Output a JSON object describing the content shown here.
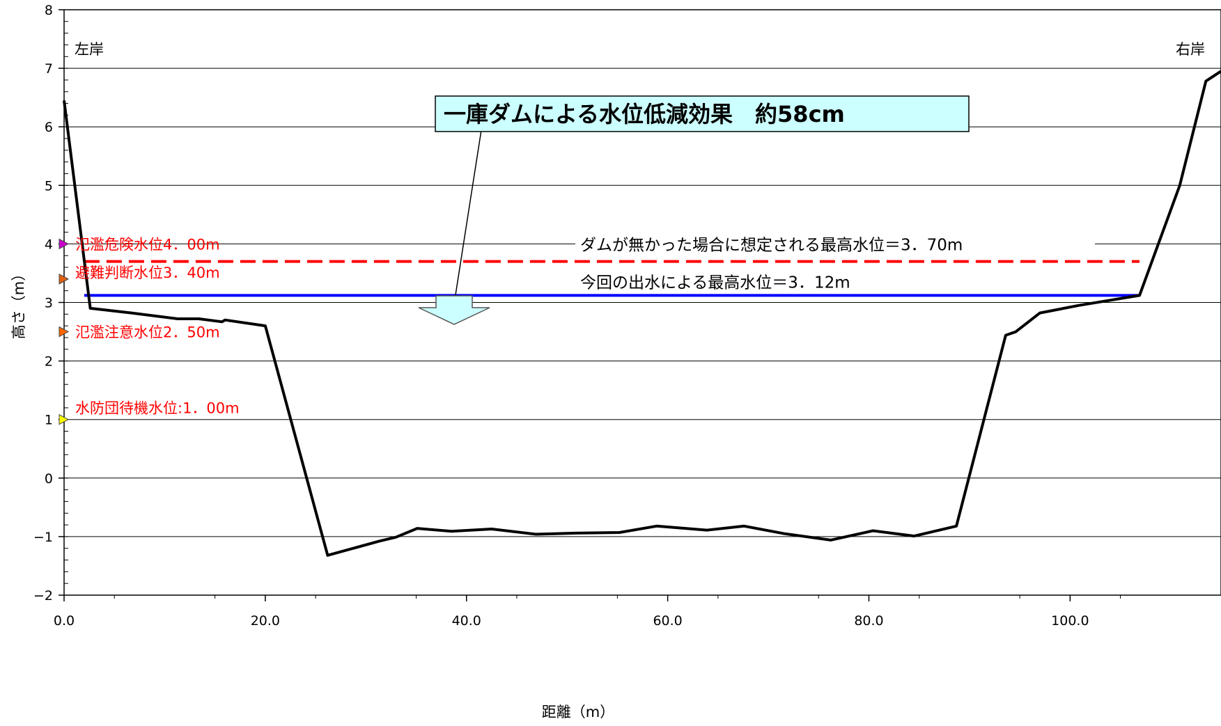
{
  "chart_data": {
    "type": "line",
    "xlabel": "距離（m）",
    "ylabel": "高さ（m）",
    "xlim": [
      0,
      115
    ],
    "ylim": [
      -2,
      8
    ],
    "x_ticks": [
      "0.0",
      "20.0",
      "40.0",
      "60.0",
      "80.0",
      "100.0"
    ],
    "x_tick_values": [
      0,
      20,
      40,
      60,
      80,
      100
    ],
    "y_ticks": [
      "8",
      "7",
      "6",
      "5",
      "4",
      "3",
      "2",
      "1",
      "0",
      "−1",
      "−2"
    ],
    "y_tick_values": [
      8,
      7,
      6,
      5,
      4,
      3,
      2,
      1,
      0,
      -1,
      -2
    ],
    "grid": "horizontal",
    "bank_labels": {
      "left": "左岸",
      "right": "右岸"
    },
    "headline": "一庫ダムによる水位低減効果　約58cm",
    "series": [
      {
        "color": "#000000",
        "x": [
          0.0,
          2.6,
          6.7,
          11.3,
          13.4,
          15.7,
          16.0,
          20.0,
          26.2,
          31.3,
          33.0,
          35.1,
          38.5,
          42.5,
          46.9,
          50.9,
          55.2,
          58.9,
          63.9,
          67.6,
          71.6,
          76.2,
          80.4,
          84.5,
          88.7,
          93.6,
          94.6,
          97.0,
          100.9,
          106.9,
          110.9,
          113.5,
          115.0
        ],
        "y": [
          6.45,
          2.9,
          2.82,
          2.72,
          2.72,
          2.67,
          2.7,
          2.6,
          -1.32,
          -1.08,
          -1.01,
          -0.86,
          -0.91,
          -0.87,
          -0.96,
          -0.94,
          -0.93,
          -0.82,
          -0.89,
          -0.82,
          -0.95,
          -1.06,
          -0.9,
          -0.99,
          -0.82,
          2.44,
          2.5,
          2.82,
          2.95,
          3.12,
          5.0,
          6.78,
          6.95
        ]
      }
    ],
    "reference_lines": [
      {
        "label": "ダムが無かった場合に想定される最高水位＝3．70m",
        "value": 3.7,
        "x_start": 2.0,
        "x_end": 106.9,
        "color": "#ff0000",
        "style": "dashed"
      },
      {
        "label": "今回の出水による最高水位＝3．12m",
        "value": 3.12,
        "x_start": 2.0,
        "x_end": 106.9,
        "color": "#0000ff",
        "style": "solid"
      }
    ],
    "levels": [
      {
        "label": "氾濫危険水位4．00m",
        "value": 4.0,
        "color": "#cc00cc"
      },
      {
        "label": "避難判断水位3．40m",
        "value": 3.4,
        "color": "#e06010"
      },
      {
        "label": "氾濫注意水位2．50m",
        "value": 2.5,
        "color": "#ff6600"
      },
      {
        "label": "水防団待機水位:1．00m",
        "value": 1.0,
        "color": "#ffff00"
      }
    ]
  }
}
